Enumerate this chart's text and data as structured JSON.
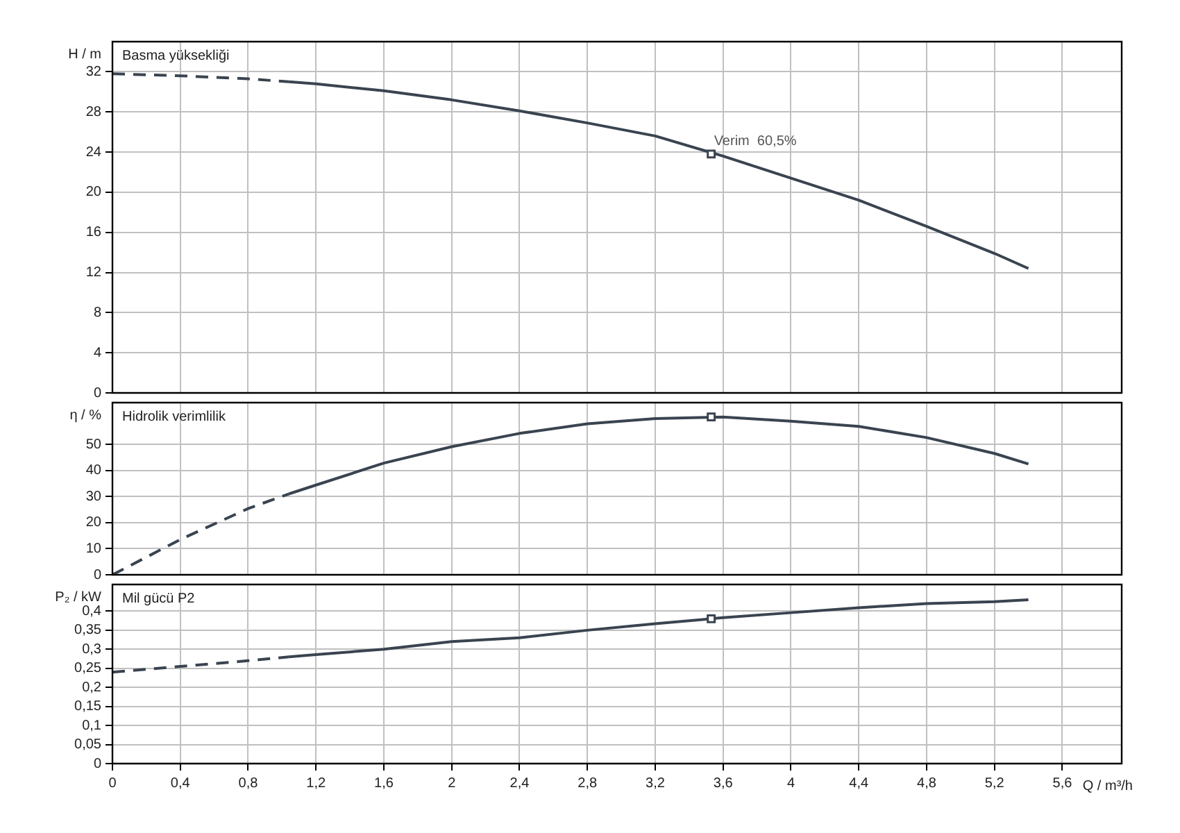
{
  "chart_data": [
    {
      "type": "line",
      "ylabel": "H / m",
      "annotations": [
        "Basma yüksekliği",
        {
          "text": "Verim  60,5%",
          "x": 3.53,
          "y": 23.8
        }
      ],
      "xlim": [
        0,
        5.95
      ],
      "xticks": [
        0,
        0.4,
        0.8,
        1.2,
        1.6,
        2,
        2.4,
        2.8,
        3.2,
        3.6,
        4,
        4.4,
        4.8,
        5.2,
        5.6
      ],
      "ylim": [
        0,
        35
      ],
      "yticks": [
        0,
        4,
        8,
        12,
        16,
        20,
        24,
        28,
        32
      ],
      "grid": true,
      "tick_labels": "y",
      "series": [
        {
          "type": "line",
          "color": "#3a4450",
          "line_style": "dashed",
          "x": [
            0,
            0.4,
            0.8,
            1.04
          ],
          "values": [
            31.8,
            31.6,
            31.3,
            31.0
          ]
        },
        {
          "type": "line",
          "color": "#3a4450",
          "line_style": "solid",
          "x": [
            1.04,
            1.2,
            1.6,
            2.0,
            2.4,
            2.8,
            3.2,
            3.6,
            4.0,
            4.4,
            4.8,
            5.2,
            5.4
          ],
          "values": [
            31.0,
            30.8,
            30.1,
            29.2,
            28.1,
            26.9,
            25.6,
            23.6,
            21.4,
            19.2,
            16.6,
            13.9,
            12.4
          ]
        },
        {
          "type": "scatter",
          "color": "#3a4450",
          "marker": "square",
          "x": [
            3.53
          ],
          "values": [
            23.8
          ]
        }
      ]
    },
    {
      "type": "line",
      "ylabel": "η / %",
      "annotations": [
        "Hidrolik verimlilik"
      ],
      "xlim": [
        0,
        5.95
      ],
      "xticks": [
        0,
        0.4,
        0.8,
        1.2,
        1.6,
        2,
        2.4,
        2.8,
        3.2,
        3.6,
        4,
        4.4,
        4.8,
        5.2,
        5.6
      ],
      "ylim": [
        0,
        66
      ],
      "yticks": [
        0,
        10,
        20,
        30,
        40,
        50
      ],
      "grid": true,
      "tick_labels": "y",
      "series": [
        {
          "type": "line",
          "color": "#3a4450",
          "line_style": "dashed",
          "x": [
            0,
            0.4,
            0.8,
            1.04
          ],
          "values": [
            0,
            13.5,
            25.4,
            31
          ]
        },
        {
          "type": "line",
          "color": "#3a4450",
          "line_style": "solid",
          "x": [
            1.04,
            1.2,
            1.6,
            2.0,
            2.4,
            2.8,
            3.2,
            3.6,
            4.0,
            4.4,
            4.8,
            5.2,
            5.4
          ],
          "values": [
            31,
            34.4,
            42.8,
            49.1,
            54.2,
            57.9,
            59.9,
            60.5,
            58.9,
            56.9,
            52.6,
            46.5,
            42.5
          ]
        },
        {
          "type": "scatter",
          "color": "#3a4450",
          "marker": "square",
          "x": [
            3.53
          ],
          "values": [
            60.5
          ]
        }
      ]
    },
    {
      "type": "line",
      "ylabel": "P₂ / kW",
      "xlabel": "Q / m³/h",
      "annotations": [
        "Mil gücü P2"
      ],
      "xlim": [
        0,
        5.95
      ],
      "xticks": [
        0,
        {
          "value": 0.4,
          "label": "0,4"
        },
        {
          "value": 0.8,
          "label": "0,8"
        },
        {
          "value": 1.2,
          "label": "1,2"
        },
        {
          "value": 1.6,
          "label": "1,6"
        },
        2,
        {
          "value": 2.4,
          "label": "2,4"
        },
        {
          "value": 2.8,
          "label": "2,8"
        },
        {
          "value": 3.2,
          "label": "3,2"
        },
        {
          "value": 3.6,
          "label": "3,6"
        },
        4,
        {
          "value": 4.4,
          "label": "4,4"
        },
        {
          "value": 4.8,
          "label": "4,8"
        },
        {
          "value": 5.2,
          "label": "5,2"
        },
        {
          "value": 5.6,
          "label": "5,6"
        }
      ],
      "ylim": [
        0,
        0.47
      ],
      "yticks": [
        0,
        {
          "value": 0.05,
          "label": "0,05"
        },
        {
          "value": 0.1,
          "label": "0,1"
        },
        {
          "value": 0.15,
          "label": "0,15"
        },
        {
          "value": 0.2,
          "label": "0,2"
        },
        {
          "value": 0.25,
          "label": "0,25"
        },
        {
          "value": 0.3,
          "label": "0,3"
        },
        {
          "value": 0.35,
          "label": "0,35"
        },
        {
          "value": 0.4,
          "label": "0,4"
        }
      ],
      "grid": true,
      "series": [
        {
          "type": "line",
          "color": "#3a4450",
          "line_style": "dashed",
          "x": [
            0,
            0.4,
            0.8,
            1.04
          ],
          "values": [
            0.24,
            0.255,
            0.27,
            0.28
          ]
        },
        {
          "type": "line",
          "color": "#3a4450",
          "line_style": "solid",
          "x": [
            1.04,
            1.2,
            1.6,
            2.0,
            2.4,
            2.8,
            3.2,
            3.6,
            4.0,
            4.4,
            4.8,
            5.2,
            5.4
          ],
          "values": [
            0.28,
            0.286,
            0.3,
            0.32,
            0.33,
            0.35,
            0.367,
            0.383,
            0.396,
            0.409,
            0.42,
            0.425,
            0.43
          ]
        },
        {
          "type": "scatter",
          "color": "#3a4450",
          "marker": "square",
          "x": [
            3.53
          ],
          "values": [
            0.38
          ]
        }
      ]
    }
  ]
}
